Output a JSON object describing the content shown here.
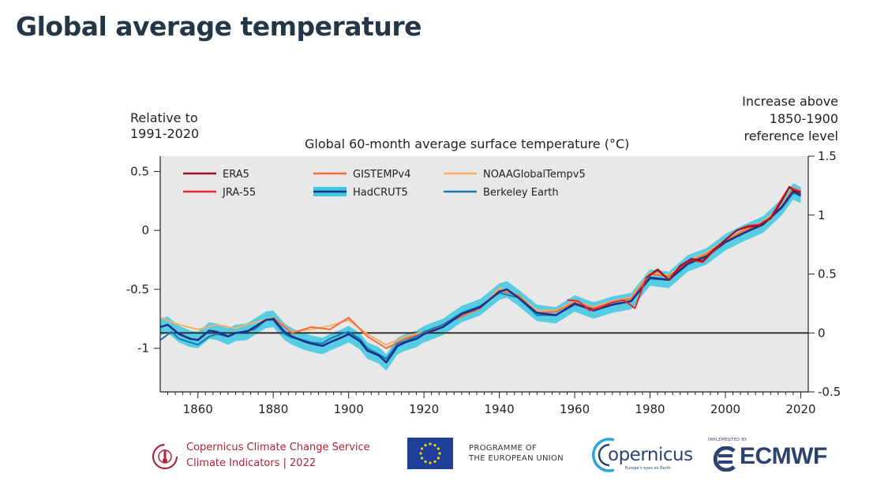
{
  "page": {
    "title": "Global average temperature"
  },
  "chart_data": {
    "type": "line",
    "title": "Global 60-month average surface temperature (°C)",
    "ylabel": "Relative to 1991-2020",
    "ylabel_right": "Increase above 1850-1900 reference level",
    "ylim": [
      -1.37,
      0.63
    ],
    "ylim_right": [
      -0.5,
      1.5
    ],
    "right_axis_offset": 0.87,
    "xlim": [
      1850,
      2022
    ],
    "x_ticks": [
      "1860",
      "1880",
      "1900",
      "1920",
      "1940",
      "1960",
      "1980",
      "2000",
      "2020"
    ],
    "y_ticks": [
      "0.5",
      "0",
      "-0.5",
      "-1"
    ],
    "y_ticks_right": [
      "1.5",
      "1",
      "0.5",
      "0",
      "-0.5"
    ],
    "reference_line": -0.87,
    "legend_position": "top-left",
    "grid": false,
    "background": "#e8e8e8",
    "series": [
      {
        "name": "ERA5",
        "color": "#9b1020",
        "width": 2,
        "x": [
          1979,
          1982,
          1985,
          1988,
          1991,
          1994,
          1997,
          2000,
          2003,
          2006,
          2009,
          2012,
          2015,
          2017,
          2018,
          2019,
          2020
        ],
        "y": [
          -0.4,
          -0.33,
          -0.42,
          -0.3,
          -0.24,
          -0.26,
          -0.16,
          -0.08,
          0.0,
          0.03,
          0.04,
          0.1,
          0.25,
          0.37,
          0.34,
          0.33,
          0.32
        ]
      },
      {
        "name": "JRA-55",
        "color": "#e8262b",
        "width": 2,
        "x": [
          1958,
          1961,
          1964,
          1967,
          1970,
          1973,
          1976,
          1979,
          1982,
          1985,
          1988,
          1991,
          1994,
          1997,
          2000,
          2003,
          2006,
          2009,
          2012,
          2015,
          2017,
          2018,
          2019,
          2020
        ],
        "y": [
          -0.59,
          -0.6,
          -0.68,
          -0.65,
          -0.61,
          -0.59,
          -0.66,
          -0.4,
          -0.34,
          -0.42,
          -0.31,
          -0.25,
          -0.27,
          -0.17,
          -0.08,
          0.0,
          0.04,
          0.05,
          0.11,
          0.27,
          0.37,
          0.35,
          0.34,
          0.33
        ]
      },
      {
        "name": "GISTEMPv4",
        "color": "#f26b3a",
        "width": 2,
        "x": [
          1880,
          1885,
          1890,
          1895,
          1900,
          1905,
          1910,
          1915,
          1920,
          1925,
          1930,
          1935,
          1940,
          1945,
          1950,
          1955,
          1960,
          1965,
          1970,
          1975,
          1980,
          1985,
          1990,
          1995,
          2000,
          2005,
          2010,
          2015,
          2018,
          2020
        ],
        "y": [
          -0.74,
          -0.87,
          -0.82,
          -0.84,
          -0.74,
          -0.9,
          -1.0,
          -0.92,
          -0.87,
          -0.8,
          -0.73,
          -0.66,
          -0.51,
          -0.55,
          -0.7,
          -0.69,
          -0.61,
          -0.66,
          -0.61,
          -0.58,
          -0.37,
          -0.39,
          -0.27,
          -0.2,
          -0.09,
          0.0,
          0.06,
          0.2,
          0.36,
          0.33
        ]
      },
      {
        "name": "NOAAGlobalTempv5",
        "color": "#f7b066",
        "width": 2,
        "x": [
          1850,
          1855,
          1860,
          1865,
          1870,
          1875,
          1880,
          1885,
          1890,
          1895,
          1900,
          1905,
          1910,
          1915,
          1920,
          1925,
          1930,
          1935,
          1940,
          1945,
          1950,
          1955,
          1960,
          1965,
          1970,
          1975,
          1980,
          1985,
          1990,
          1995,
          2000,
          2005,
          2010,
          2015,
          2018,
          2020
        ],
        "y": [
          -0.74,
          -0.8,
          -0.84,
          -0.8,
          -0.83,
          -0.78,
          -0.74,
          -0.86,
          -0.84,
          -0.81,
          -0.76,
          -0.88,
          -0.97,
          -0.9,
          -0.86,
          -0.8,
          -0.72,
          -0.66,
          -0.49,
          -0.55,
          -0.68,
          -0.68,
          -0.6,
          -0.65,
          -0.6,
          -0.57,
          -0.36,
          -0.38,
          -0.26,
          -0.19,
          -0.08,
          0.01,
          0.07,
          0.21,
          0.36,
          0.33
        ]
      },
      {
        "name": "HadCRUT5",
        "color": "#1b2f8c",
        "width": 2.5,
        "band": 0.07,
        "band_color": "#3cc8e0",
        "x": [
          1850,
          1852,
          1855,
          1858,
          1860,
          1863,
          1865,
          1868,
          1870,
          1873,
          1875,
          1878,
          1880,
          1883,
          1885,
          1888,
          1890,
          1893,
          1895,
          1898,
          1900,
          1903,
          1905,
          1908,
          1910,
          1913,
          1915,
          1918,
          1920,
          1925,
          1930,
          1935,
          1940,
          1942,
          1945,
          1950,
          1955,
          1960,
          1965,
          1970,
          1975,
          1980,
          1985,
          1990,
          1995,
          2000,
          2005,
          2010,
          2015,
          2018,
          2020
        ],
        "y": [
          -0.82,
          -0.8,
          -0.88,
          -0.92,
          -0.93,
          -0.85,
          -0.86,
          -0.9,
          -0.87,
          -0.86,
          -0.82,
          -0.76,
          -0.75,
          -0.86,
          -0.9,
          -0.94,
          -0.96,
          -0.98,
          -0.95,
          -0.91,
          -0.88,
          -0.94,
          -1.02,
          -1.06,
          -1.12,
          -0.98,
          -0.95,
          -0.92,
          -0.88,
          -0.82,
          -0.71,
          -0.65,
          -0.52,
          -0.5,
          -0.57,
          -0.7,
          -0.72,
          -0.62,
          -0.68,
          -0.63,
          -0.6,
          -0.4,
          -0.42,
          -0.28,
          -0.22,
          -0.1,
          -0.02,
          0.05,
          0.2,
          0.33,
          0.3
        ]
      },
      {
        "name": "Berkeley Earth",
        "color": "#1a78b5",
        "width": 2,
        "x": [
          1850,
          1853,
          1855,
          1858,
          1860,
          1863,
          1865,
          1868,
          1870,
          1873,
          1875,
          1878,
          1880,
          1883,
          1885,
          1888,
          1890,
          1893,
          1895,
          1898,
          1900,
          1903,
          1905,
          1908,
          1910,
          1913,
          1915,
          1918,
          1920,
          1925,
          1930,
          1935,
          1940,
          1945,
          1950,
          1955,
          1960,
          1965,
          1970,
          1975,
          1980,
          1985,
          1990,
          1995,
          2000,
          2005,
          2010,
          2015,
          2018,
          2020
        ],
        "y": [
          -0.93,
          -0.86,
          -0.92,
          -0.95,
          -0.97,
          -0.9,
          -0.88,
          -0.9,
          -0.87,
          -0.85,
          -0.84,
          -0.76,
          -0.76,
          -0.88,
          -0.91,
          -0.93,
          -0.95,
          -0.96,
          -0.92,
          -0.88,
          -0.86,
          -0.92,
          -1.0,
          -1.05,
          -1.09,
          -0.96,
          -0.94,
          -0.9,
          -0.86,
          -0.8,
          -0.7,
          -0.64,
          -0.53,
          -0.57,
          -0.72,
          -0.72,
          -0.63,
          -0.67,
          -0.63,
          -0.6,
          -0.41,
          -0.42,
          -0.29,
          -0.22,
          -0.1,
          -0.02,
          0.05,
          0.19,
          0.32,
          0.29
        ]
      }
    ]
  },
  "footer": {
    "c3s_line1": "Copernicus Climate Change Service",
    "c3s_line2": "Climate Indicators | 2022",
    "programme_line1": "PROGRAMME OF",
    "programme_line2": "THE EUROPEAN UNION",
    "copernicus_word": "opernicus",
    "copernicus_tagline": "Europe's eyes on Earth",
    "ecmwf_small": "IMPLEMENTED BY",
    "ecmwf_word": "ECMWF"
  }
}
